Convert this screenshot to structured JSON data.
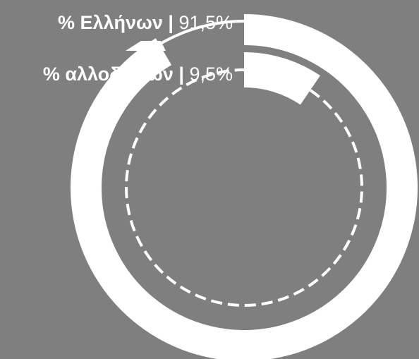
{
  "chart_data": {
    "type": "pie",
    "subtype": "nested-donut",
    "rings": [
      {
        "ring": "outer",
        "style": "solid",
        "name": "% Ελλήνων",
        "value": 91.5,
        "value_label": "91,5%",
        "color": "#ffffff"
      },
      {
        "ring": "inner",
        "style": "solid-arc-with-dashed-remainder",
        "name": "% αλλοδαπών",
        "value": 9.5,
        "value_label": "9,5%",
        "color": "#ffffff"
      }
    ],
    "labels": [
      {
        "name": "% Ελλήνων",
        "separator": " | ",
        "value": "91,5%"
      },
      {
        "name": "% αλλοδαπών",
        "separator": " | ",
        "value": "9,5%"
      }
    ],
    "background_color": "#7f7f7f"
  }
}
